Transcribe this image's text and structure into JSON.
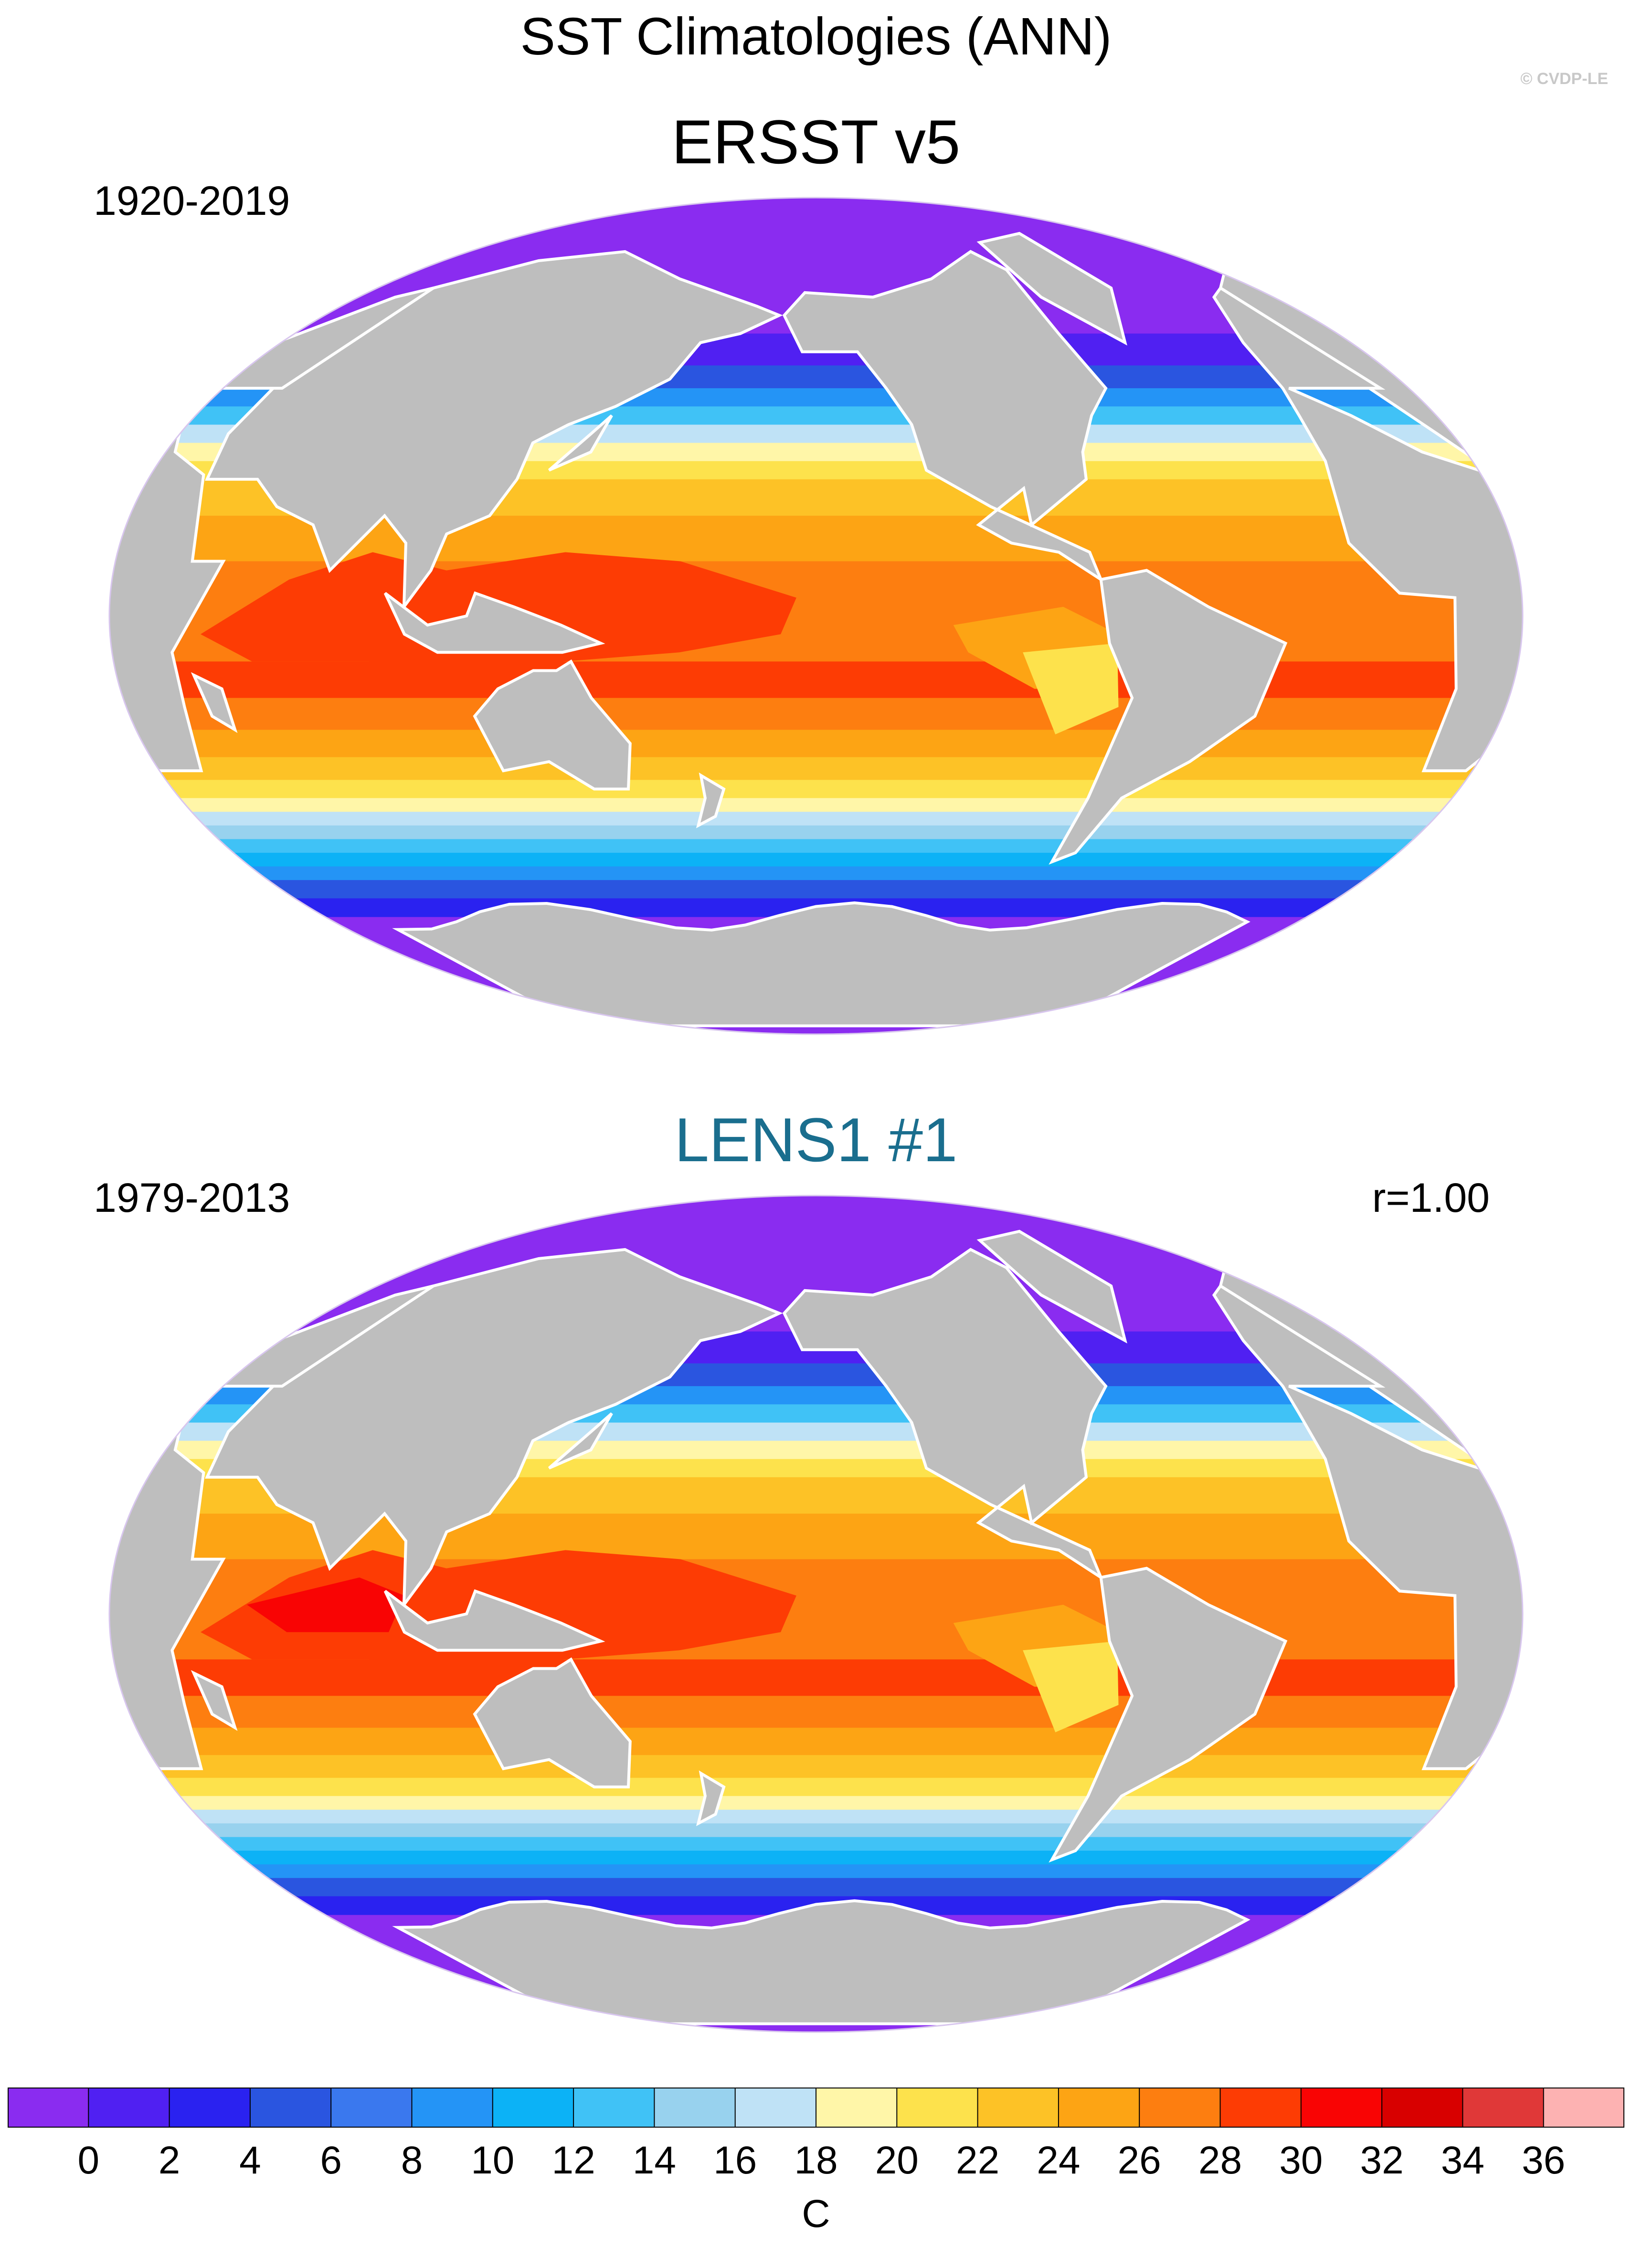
{
  "figure": {
    "title": "SST Climatologies (ANN)",
    "copyright": "© CVDP-LE"
  },
  "chart_data": [
    {
      "type": "heatmap",
      "title": "ERSST v5",
      "period": "1920-2019",
      "variable": "annual mean sea surface temperature",
      "units": "C",
      "projection": "Robinson, centered on the Pacific",
      "land_color": "#bebebe"
    },
    {
      "type": "heatmap",
      "title": "LENS1 #1",
      "title_color": "#1a6e8e",
      "period": "1979-2013",
      "correlation": "r=1.00",
      "variable": "annual mean sea surface temperature",
      "units": "C",
      "projection": "Robinson, centered on the Pacific",
      "land_color": "#bebebe"
    }
  ],
  "colorbar": {
    "unit_label": "C",
    "tick_labels": [
      "0",
      "2",
      "4",
      "6",
      "8",
      "10",
      "12",
      "14",
      "16",
      "18",
      "20",
      "22",
      "24",
      "26",
      "28",
      "30",
      "32",
      "34",
      "36"
    ],
    "levels": [
      0,
      2,
      4,
      6,
      8,
      10,
      12,
      14,
      16,
      18,
      20,
      22,
      24,
      26,
      28,
      30,
      32,
      34,
      36
    ],
    "colors": [
      "#8a2cf0",
      "#5020f2",
      "#2a22f0",
      "#2a55e0",
      "#3a78ee",
      "#2494f6",
      "#0cb2f6",
      "#40c2f6",
      "#98d2ee",
      "#bfe2f6",
      "#fff6a8",
      "#fde24c",
      "#fdc226",
      "#fda414",
      "#fd7e10",
      "#fd3c04",
      "#f90404",
      "#d80000",
      "#e03838",
      "#fdb2b2"
    ]
  }
}
